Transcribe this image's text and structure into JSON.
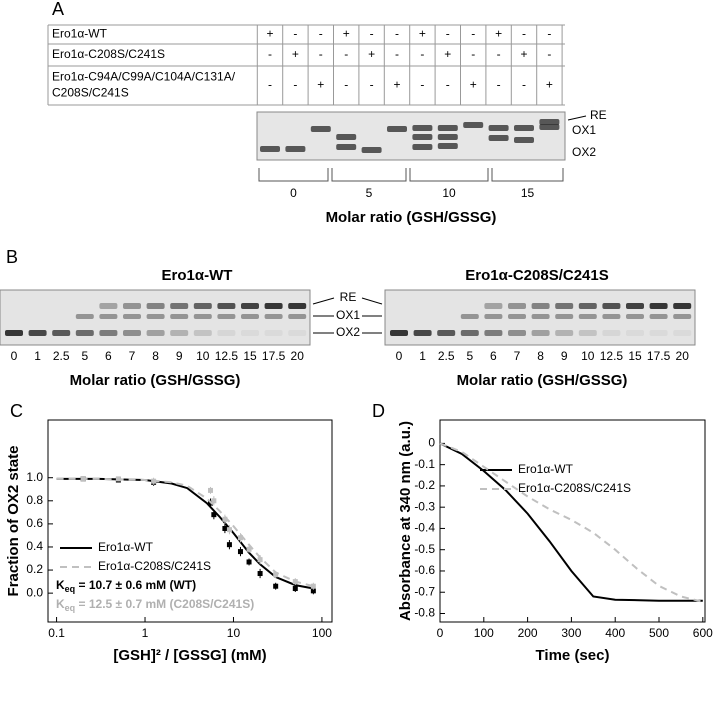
{
  "panel_a": {
    "label": "A",
    "rows": [
      {
        "name": [
          "Ero1α-WT"
        ],
        "signs": [
          "+",
          "-",
          "-",
          "+",
          "-",
          "-",
          "+",
          "-",
          "-",
          "+",
          "-",
          "-"
        ]
      },
      {
        "name": [
          "Ero1α-C208S/C241S"
        ],
        "signs": [
          "-",
          "+",
          "-",
          "-",
          "+",
          "-",
          "-",
          "+",
          "-",
          "-",
          "+",
          "-"
        ]
      },
      {
        "name": [
          "Ero1α-C94A/C99A/C104A/C131A/",
          "C208S/C241S"
        ],
        "signs": [
          "-",
          "-",
          "+",
          "-",
          "-",
          "+",
          "-",
          "-",
          "+",
          "-",
          "-",
          "+"
        ]
      }
    ],
    "band_labels": [
      "RE",
      "OX1",
      "OX2"
    ],
    "ratios": [
      0,
      5,
      10,
      15
    ],
    "xlabel": "Molar ratio (GSH/GSSG)"
  },
  "panel_b": {
    "label": "B",
    "gels": [
      {
        "title": "Ero1α-WT"
      },
      {
        "title": "Ero1α-C208S/C241S"
      }
    ],
    "lanes": [
      0,
      1,
      2.5,
      5,
      6,
      7,
      8,
      9,
      10,
      12.5,
      15,
      17.5,
      20
    ],
    "band_labels": [
      "RE",
      "OX1",
      "OX2"
    ],
    "xlabel": "Molar ratio (GSH/GSSG)"
  },
  "chart_data": [
    {
      "type": "line",
      "panel_label": "C",
      "xscale": "log",
      "ylabel": "Fraction of OX2 state",
      "xlabel": "[GSH]² / [GSSG] (mM)",
      "xlim": [
        0.08,
        130
      ],
      "ylim": [
        -0.25,
        1.5
      ],
      "xticks": [
        0.1,
        1,
        10,
        100
      ],
      "yticks": [
        {
          "value": 0,
          "label": "0.0"
        },
        {
          "value": 0.2,
          "label": "0.2"
        },
        {
          "value": 0.4,
          "label": "0.4"
        },
        {
          "value": 0.6,
          "label": "0.6"
        },
        {
          "value": 0.8,
          "label": "0.8"
        },
        {
          "value": 1,
          "label": "1.0"
        }
      ],
      "series": [
        {
          "name": "Ero1α-WT",
          "color": "#000000",
          "dash": false,
          "x": [
            0.1,
            0.3,
            1,
            2,
            3,
            5,
            7,
            10,
            15,
            20,
            30,
            50,
            80
          ],
          "values": [
            0.99,
            0.99,
            0.98,
            0.95,
            0.91,
            0.78,
            0.66,
            0.52,
            0.35,
            0.25,
            0.14,
            0.07,
            0.04
          ],
          "points_x": [
            0.2,
            0.5,
            1.25,
            5.5,
            6,
            8,
            9,
            12,
            15,
            20,
            30,
            50,
            80
          ],
          "points": [
            0.99,
            0.98,
            0.96,
            0.78,
            0.68,
            0.56,
            0.42,
            0.36,
            0.27,
            0.17,
            0.06,
            0.04,
            0.02
          ],
          "errors": [
            0.02,
            0.02,
            0.03,
            0.04,
            0.04,
            0.04,
            0.04,
            0.04,
            0.03,
            0.04,
            0.03,
            0.03,
            0.03
          ]
        },
        {
          "name": "Ero1α-C208S/C241S",
          "color": "#c0c0c0",
          "dash": true,
          "x": [
            0.1,
            0.3,
            1,
            2,
            3,
            5,
            7,
            10,
            15,
            20,
            30,
            50,
            80
          ],
          "values": [
            0.99,
            0.99,
            0.98,
            0.96,
            0.93,
            0.82,
            0.71,
            0.58,
            0.42,
            0.31,
            0.18,
            0.1,
            0.06
          ],
          "points_x": [
            0.2,
            0.5,
            1.25,
            5.5,
            6,
            8,
            9,
            12,
            15,
            20,
            30,
            50,
            80
          ],
          "points": [
            0.99,
            0.99,
            0.97,
            0.89,
            0.8,
            0.64,
            0.55,
            0.48,
            0.38,
            0.29,
            0.16,
            0.1,
            0.06
          ],
          "errors": [
            0.02,
            0.02,
            0.03,
            0.03,
            0.04,
            0.04,
            0.04,
            0.04,
            0.03,
            0.04,
            0.03,
            0.03,
            0.03
          ]
        }
      ],
      "annotations": [
        {
          "prefix": "K",
          "sub": "eq",
          "text": " = 10.7 ± 0.6 mM (WT)",
          "color": "#000000"
        },
        {
          "prefix": "K",
          "sub": "eq",
          "text": " = 12.5 ± 0.7 mM (C208S/C241S)",
          "color": "#b0b0b0"
        }
      ]
    },
    {
      "type": "line",
      "panel_label": "D",
      "xscale": "linear",
      "ylabel": "Absorbance at 340 nm (a.u.)",
      "xlabel": "Time (sec)",
      "xlim": [
        0,
        605
      ],
      "ylim": [
        -0.84,
        0.11
      ],
      "xticks": [
        0,
        100,
        200,
        300,
        400,
        500,
        600
      ],
      "yticks": [
        0,
        -0.1,
        -0.2,
        -0.3,
        -0.4,
        -0.5,
        -0.6,
        -0.7,
        -0.8
      ],
      "series": [
        {
          "name": "Ero1α-WT",
          "color": "#000000",
          "dash": false,
          "x": [
            0,
            50,
            100,
            150,
            200,
            250,
            300,
            350,
            400,
            500,
            600
          ],
          "values": [
            0,
            -0.05,
            -0.13,
            -0.22,
            -0.33,
            -0.46,
            -0.6,
            -0.72,
            -0.735,
            -0.74,
            -0.74
          ]
        },
        {
          "name": "Ero1α-C208S/C241S",
          "color": "#c0c0c0",
          "dash": true,
          "x": [
            0,
            50,
            100,
            150,
            200,
            250,
            300,
            350,
            400,
            450,
            500,
            550,
            600
          ],
          "values": [
            0,
            -0.04,
            -0.11,
            -0.18,
            -0.25,
            -0.31,
            -0.36,
            -0.42,
            -0.5,
            -0.59,
            -0.67,
            -0.72,
            -0.745
          ]
        }
      ]
    }
  ]
}
